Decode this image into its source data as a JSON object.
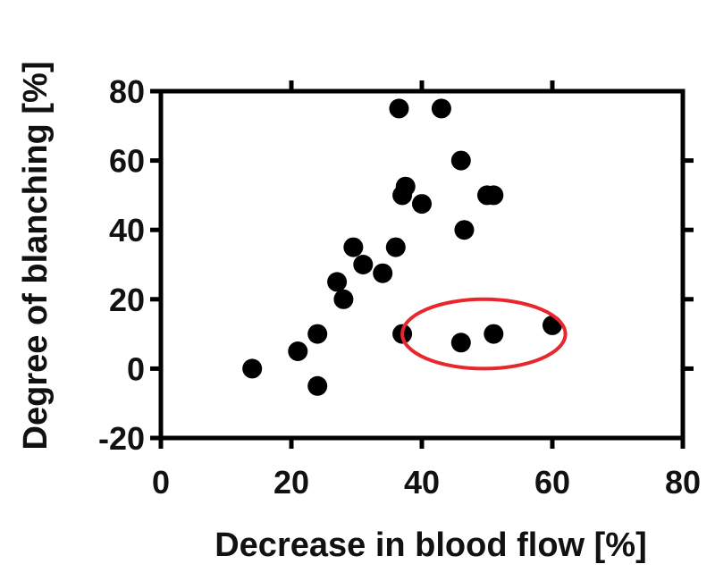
{
  "chart_data": {
    "type": "scatter",
    "title": "",
    "xlabel": "Decrease in blood flow [%]",
    "ylabel": "Degree of blanching [%]",
    "xlim": [
      0,
      80
    ],
    "ylim": [
      -20,
      80
    ],
    "xticks": [
      "0",
      "20",
      "40",
      "60",
      "80"
    ],
    "yticks": [
      "-20",
      "0",
      "20",
      "40",
      "60",
      "80"
    ],
    "grid": false,
    "legend": "none",
    "marker_color": "#000000",
    "highlight_color": "#e8262b",
    "series": [
      {
        "points": [
          {
            "x": 14,
            "y": 0
          },
          {
            "x": 21,
            "y": 5
          },
          {
            "x": 24,
            "y": 10
          },
          {
            "x": 24,
            "y": -5
          },
          {
            "x": 27,
            "y": 25
          },
          {
            "x": 28,
            "y": 20
          },
          {
            "x": 29.5,
            "y": 35
          },
          {
            "x": 31,
            "y": 30
          },
          {
            "x": 34,
            "y": 27.5
          },
          {
            "x": 36,
            "y": 35
          },
          {
            "x": 36.5,
            "y": 75
          },
          {
            "x": 37,
            "y": 50
          },
          {
            "x": 37.5,
            "y": 52.5
          },
          {
            "x": 40,
            "y": 47.5
          },
          {
            "x": 43,
            "y": 75
          },
          {
            "x": 46,
            "y": 60
          },
          {
            "x": 46.5,
            "y": 40
          },
          {
            "x": 50,
            "y": 50
          },
          {
            "x": 51,
            "y": 50
          },
          {
            "x": 37,
            "y": 10
          },
          {
            "x": 46,
            "y": 7.5
          },
          {
            "x": 51,
            "y": 10
          },
          {
            "x": 60,
            "y": 12.5
          }
        ]
      }
    ],
    "annotations": [
      {
        "type": "ellipse",
        "x_center": 49.5,
        "y_center": 10,
        "x_radius": 12.5,
        "y_radius": 10,
        "color": "#e8262b"
      }
    ]
  }
}
